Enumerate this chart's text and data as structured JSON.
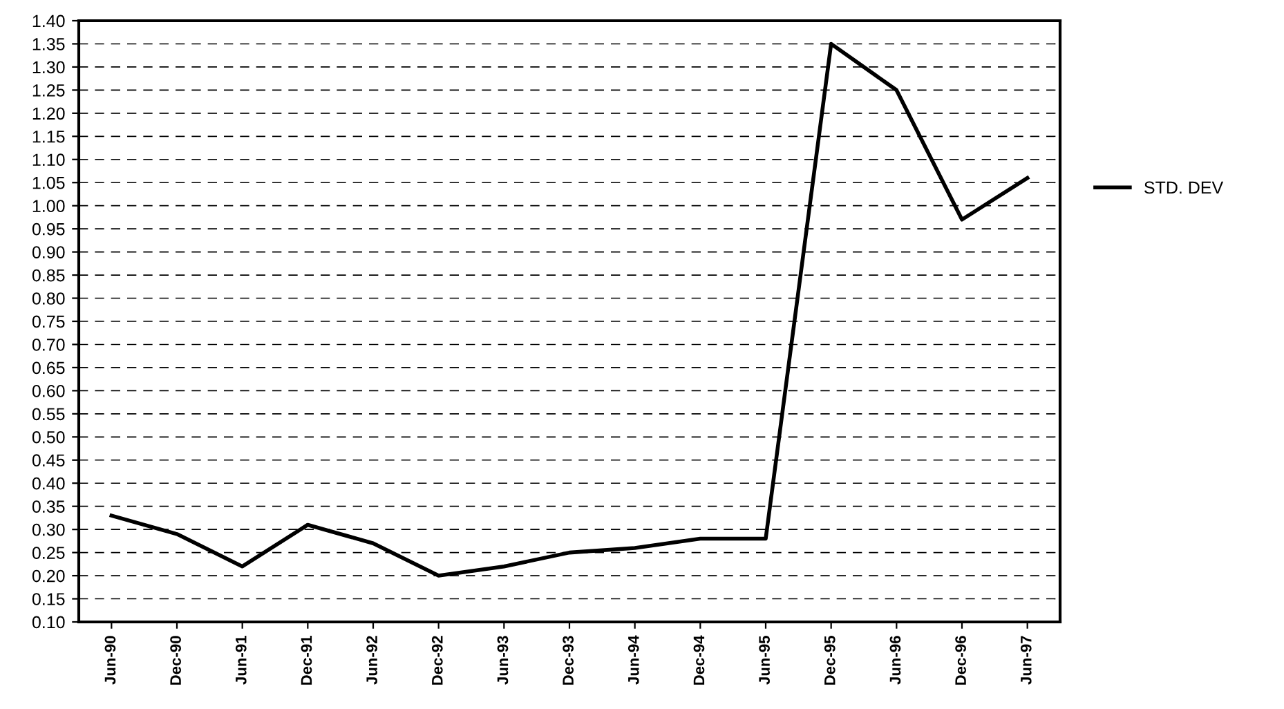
{
  "chart_data": {
    "type": "line",
    "categories": [
      "Jun-90",
      "Dec-90",
      "Jun-91",
      "Dec-91",
      "Jun-92",
      "Dec-92",
      "Jun-93",
      "Dec-93",
      "Jun-94",
      "Dec-94",
      "Jun-95",
      "Dec-95",
      "Jun-96",
      "Dec-96",
      "Jun-97"
    ],
    "series": [
      {
        "name": "STD. DEV",
        "color": "#000000",
        "values": [
          0.33,
          0.29,
          0.22,
          0.31,
          0.27,
          0.2,
          0.22,
          0.25,
          0.26,
          0.28,
          0.28,
          1.35,
          1.25,
          0.97,
          1.06
        ]
      }
    ],
    "ylim": [
      0.1,
      1.4
    ],
    "yticks": [
      {
        "value": 0.1,
        "label": "0.10"
      },
      {
        "value": 0.15,
        "label": "0.15"
      },
      {
        "value": 0.2,
        "label": "0.20"
      },
      {
        "value": 0.25,
        "label": "0.25"
      },
      {
        "value": 0.3,
        "label": "0.30"
      },
      {
        "value": 0.35,
        "label": "0.35"
      },
      {
        "value": 0.4,
        "label": "0.40"
      },
      {
        "value": 0.45,
        "label": "0.45"
      },
      {
        "value": 0.5,
        "label": "0.50"
      },
      {
        "value": 0.55,
        "label": "0.55"
      },
      {
        "value": 0.6,
        "label": "0.60"
      },
      {
        "value": 0.65,
        "label": "0.65"
      },
      {
        "value": 0.7,
        "label": "0.70"
      },
      {
        "value": 0.75,
        "label": "0.75"
      },
      {
        "value": 0.8,
        "label": "0.80"
      },
      {
        "value": 0.85,
        "label": "0.85"
      },
      {
        "value": 0.9,
        "label": "0.90"
      },
      {
        "value": 0.95,
        "label": "0.95"
      },
      {
        "value": 1.0,
        "label": "1.00"
      },
      {
        "value": 1.05,
        "label": "1.05"
      },
      {
        "value": 1.1,
        "label": "1.10"
      },
      {
        "value": 1.15,
        "label": "1.15"
      },
      {
        "value": 1.2,
        "label": "1.20"
      },
      {
        "value": 1.25,
        "label": "1.25"
      },
      {
        "value": 1.3,
        "label": "1.30"
      },
      {
        "value": 1.35,
        "label": "1.35"
      },
      {
        "value": 1.4,
        "label": "1.40"
      }
    ],
    "grid": "y",
    "legend": "right",
    "marker": "none",
    "line_style": "solid"
  }
}
